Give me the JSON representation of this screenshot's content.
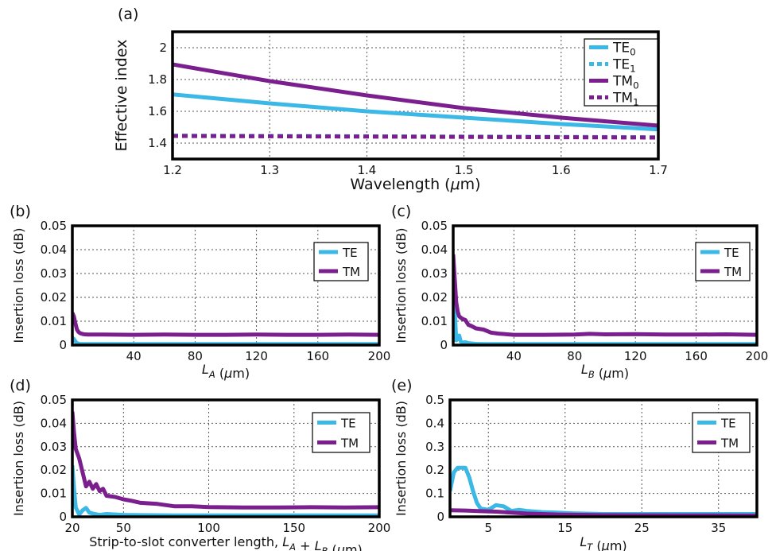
{
  "chart_data": [
    {
      "panel": "(a)",
      "type": "line",
      "xlabel": "Wavelength (μm)",
      "ylabel": "Effective index",
      "xlim": [
        1.2,
        1.7
      ],
      "ylim": [
        1.3,
        2.1
      ],
      "xticks": [
        "1.2",
        "1.3",
        "1.4",
        "1.5",
        "1.6",
        "1.7"
      ],
      "yticks": [
        "1.4",
        "1.6",
        "1.8",
        "2"
      ],
      "grid": true,
      "legend_position": "top-right",
      "series": [
        {
          "name": "TE",
          "sub": "0",
          "color": "#3bb8e6",
          "dash": false,
          "x": [
            1.2,
            1.3,
            1.4,
            1.5,
            1.6,
            1.7
          ],
          "y": [
            1.706,
            1.65,
            1.6,
            1.56,
            1.52,
            1.486
          ]
        },
        {
          "name": "TE",
          "sub": "1",
          "color": "#3bb8e6",
          "dash": true,
          "x": [
            1.2,
            1.3,
            1.4,
            1.5,
            1.6,
            1.7
          ],
          "y": [
            1.447,
            1.445,
            1.443,
            1.441,
            1.439,
            1.437
          ]
        },
        {
          "name": "TM",
          "sub": "0",
          "color": "#7b1f8f",
          "dash": false,
          "x": [
            1.2,
            1.3,
            1.4,
            1.5,
            1.6,
            1.7
          ],
          "y": [
            1.895,
            1.79,
            1.7,
            1.62,
            1.56,
            1.51
          ]
        },
        {
          "name": "TM",
          "sub": "1",
          "color": "#7b1f8f",
          "dash": true,
          "x": [
            1.2,
            1.3,
            1.4,
            1.5,
            1.6,
            1.7
          ],
          "y": [
            1.445,
            1.443,
            1.441,
            1.439,
            1.437,
            1.435
          ]
        }
      ]
    },
    {
      "panel": "(b)",
      "type": "line",
      "xlabel": "L_A (μm)",
      "ylabel": "Insertion loss (dB)",
      "xlim": [
        0,
        200
      ],
      "ylim": [
        0,
        0.05
      ],
      "xticks": [
        "40",
        "80",
        "120",
        "160",
        "200"
      ],
      "yticks": [
        "0",
        "0.01",
        "0.02",
        "0.03",
        "0.04",
        "0.05"
      ],
      "grid": true,
      "legend_position": "top-right",
      "series": [
        {
          "name": "TE",
          "color": "#3bb8e6",
          "x": [
            0,
            1,
            2,
            3,
            5,
            200
          ],
          "y": [
            0.003,
            0.0025,
            0.0015,
            0.0008,
            0.0004,
            0.0004
          ]
        },
        {
          "name": "TM",
          "color": "#7b1f8f",
          "x": [
            0,
            1,
            2,
            3,
            4,
            5,
            6,
            7,
            8,
            10,
            20,
            40,
            60,
            80,
            100,
            120,
            140,
            160,
            180,
            200
          ],
          "y": [
            0.0135,
            0.012,
            0.009,
            0.0065,
            0.0055,
            0.005,
            0.0048,
            0.0046,
            0.0045,
            0.0044,
            0.0044,
            0.0043,
            0.0044,
            0.0043,
            0.0043,
            0.0044,
            0.0043,
            0.0043,
            0.0044,
            0.0043
          ]
        }
      ]
    },
    {
      "panel": "(c)",
      "type": "line",
      "xlabel": "L_B (μm)",
      "ylabel": "Insertion loss (dB)",
      "xlim": [
        0,
        200
      ],
      "ylim": [
        0,
        0.05
      ],
      "xticks": [
        "40",
        "80",
        "120",
        "160",
        "200"
      ],
      "yticks": [
        "0",
        "0.01",
        "0.02",
        "0.03",
        "0.04",
        "0.05"
      ],
      "grid": true,
      "legend_position": "top-right",
      "series": [
        {
          "name": "TE",
          "color": "#3bb8e6",
          "x": [
            0,
            1,
            2,
            3,
            4,
            5,
            6,
            8,
            10,
            15,
            20,
            200
          ],
          "y": [
            0.035,
            0.015,
            0.002,
            0.0025,
            0.004,
            0.0015,
            0.001,
            0.0012,
            0.0008,
            0.0005,
            0.0004,
            0.0004
          ]
        },
        {
          "name": "TM",
          "color": "#7b1f8f",
          "x": [
            0,
            1,
            2,
            3,
            4,
            6,
            8,
            10,
            12,
            15,
            20,
            25,
            30,
            40,
            60,
            80,
            90,
            100,
            120,
            140,
            160,
            180,
            200
          ],
          "y": [
            0.038,
            0.028,
            0.018,
            0.014,
            0.012,
            0.011,
            0.0105,
            0.0085,
            0.008,
            0.007,
            0.0065,
            0.0052,
            0.0048,
            0.0043,
            0.0043,
            0.0044,
            0.0047,
            0.0045,
            0.0046,
            0.0044,
            0.0044,
            0.0045,
            0.0043
          ]
        }
      ]
    },
    {
      "panel": "(d)",
      "type": "line",
      "xlabel": "Strip-to-slot converter length, L_A + L_B (μm)",
      "ylabel": "Insertion loss (dB)",
      "xlim": [
        20,
        200
      ],
      "ylim": [
        0,
        0.05
      ],
      "xticks": [
        "20",
        "50",
        "100",
        "150",
        "200"
      ],
      "yticks": [
        "0",
        "0.01",
        "0.02",
        "0.03",
        "0.04",
        "0.05"
      ],
      "grid": true,
      "legend_position": "top-right",
      "series": [
        {
          "name": "TE",
          "color": "#3bb8e6",
          "x": [
            20,
            21,
            22,
            24,
            26,
            28,
            30,
            33,
            36,
            40,
            50,
            60,
            80,
            200
          ],
          "y": [
            0.022,
            0.012,
            0.004,
            0.001,
            0.0028,
            0.0038,
            0.0018,
            0.0012,
            0.0008,
            0.0012,
            0.0008,
            0.0007,
            0.0006,
            0.0006
          ]
        },
        {
          "name": "TM",
          "color": "#7b1f8f",
          "x": [
            20,
            21,
            22,
            24,
            26,
            28,
            30,
            32,
            34,
            36,
            38,
            40,
            45,
            50,
            55,
            60,
            70,
            80,
            90,
            100,
            120,
            140,
            160,
            180,
            200
          ],
          "y": [
            0.045,
            0.036,
            0.029,
            0.025,
            0.019,
            0.013,
            0.015,
            0.012,
            0.014,
            0.011,
            0.012,
            0.009,
            0.0085,
            0.0075,
            0.0068,
            0.006,
            0.0055,
            0.0045,
            0.0045,
            0.0042,
            0.004,
            0.004,
            0.0041,
            0.004,
            0.0041
          ]
        }
      ]
    },
    {
      "panel": "(e)",
      "type": "line",
      "xlabel": "L_T (μm)",
      "ylabel": "Insertion loss (dB)",
      "xlim": [
        0,
        40
      ],
      "ylim": [
        0,
        0.5
      ],
      "xticks": [
        "5",
        "15",
        "25",
        "35"
      ],
      "yticks": [
        "0",
        "0.1",
        "0.2",
        "0.3",
        "0.4",
        "0.5"
      ],
      "grid": true,
      "legend_position": "top-right",
      "series": [
        {
          "name": "TE",
          "color": "#3bb8e6",
          "x": [
            0,
            0.5,
            1,
            1.5,
            2,
            2.5,
            3,
            3.5,
            4,
            5,
            6,
            7,
            8,
            9,
            10,
            12,
            14,
            16,
            20,
            30,
            40
          ],
          "y": [
            0.11,
            0.19,
            0.21,
            0.21,
            0.21,
            0.17,
            0.11,
            0.06,
            0.035,
            0.03,
            0.05,
            0.045,
            0.025,
            0.03,
            0.025,
            0.02,
            0.018,
            0.015,
            0.012,
            0.012,
            0.012
          ]
        },
        {
          "name": "TM",
          "color": "#7b1f8f",
          "x": [
            0,
            2,
            4,
            6,
            8,
            10,
            14,
            20,
            30,
            40
          ],
          "y": [
            0.028,
            0.027,
            0.024,
            0.022,
            0.018,
            0.014,
            0.01,
            0.007,
            0.006,
            0.005
          ]
        }
      ]
    }
  ]
}
